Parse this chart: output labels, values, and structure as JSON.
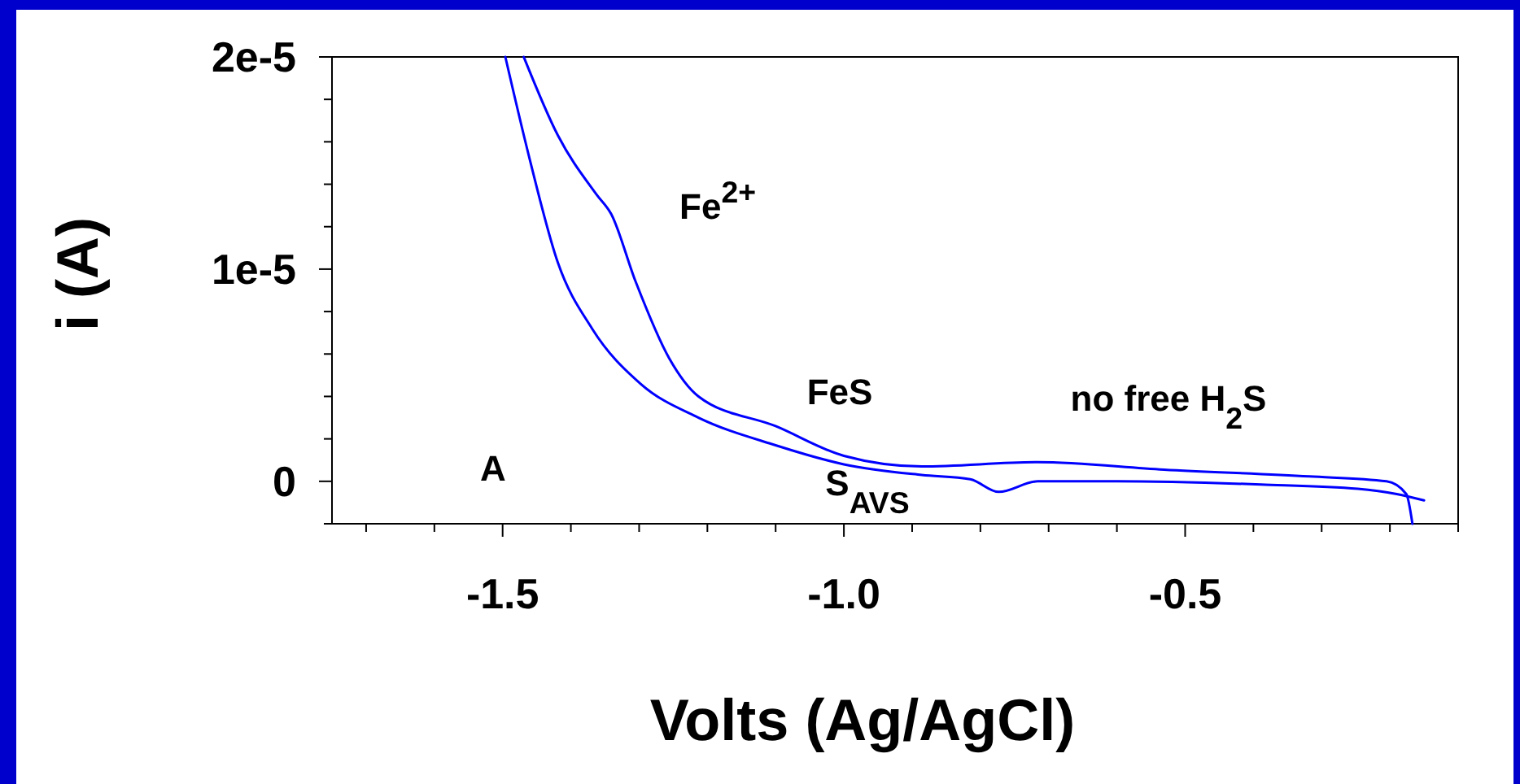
{
  "chart_data": {
    "type": "line",
    "xlabel": "Volts (Ag/AgCl)",
    "ylabel": "i (A)",
    "xlim": [
      -1.75,
      -0.1
    ],
    "ylim": [
      -2e-06,
      2e-05
    ],
    "xticks": [
      {
        "value": -1.7,
        "label": null
      },
      {
        "value": -1.6,
        "label": null
      },
      {
        "value": -1.5,
        "label": "-1.5"
      },
      {
        "value": -1.4,
        "label": null
      },
      {
        "value": -1.3,
        "label": null
      },
      {
        "value": -1.2,
        "label": null
      },
      {
        "value": -1.1,
        "label": null
      },
      {
        "value": -1.0,
        "label": "-1.0"
      },
      {
        "value": -0.9,
        "label": null
      },
      {
        "value": -0.8,
        "label": null
      },
      {
        "value": -0.7,
        "label": null
      },
      {
        "value": -0.6,
        "label": null
      },
      {
        "value": -0.5,
        "label": "-0.5"
      },
      {
        "value": -0.4,
        "label": null
      },
      {
        "value": -0.3,
        "label": null
      },
      {
        "value": -0.2,
        "label": null
      },
      {
        "value": -0.1,
        "label": null
      }
    ],
    "yticks": [
      {
        "value": -2e-06,
        "label": null
      },
      {
        "value": 0,
        "label": "0"
      },
      {
        "value": 2e-06,
        "label": null
      },
      {
        "value": 4e-06,
        "label": null
      },
      {
        "value": 6e-06,
        "label": null
      },
      {
        "value": 8e-06,
        "label": null
      },
      {
        "value": 1e-05,
        "label": "1e-5"
      },
      {
        "value": 1.2e-05,
        "label": null
      },
      {
        "value": 1.4e-05,
        "label": null
      },
      {
        "value": 1.6e-05,
        "label": null
      },
      {
        "value": 1.8e-05,
        "label": null
      },
      {
        "value": 2e-05,
        "label": "2e-5"
      }
    ],
    "grid": false,
    "marker": "none",
    "line_style": "solid",
    "series": [
      {
        "color": "#0000ff",
        "x": [
          -1.496,
          -1.462,
          -1.419,
          -1.369,
          -1.298,
          -1.213,
          -1.1,
          -1.0,
          -0.886,
          -0.815,
          -0.773,
          -0.716,
          -0.6,
          -0.389,
          -0.247,
          -0.19,
          -0.15
        ],
        "values": [
          2e-05,
          1.54e-05,
          1.03e-05,
          7.2e-06,
          4.6e-06,
          3e-06,
          1.7e-06,
          8e-07,
          3e-07,
          1e-07,
          -5e-07,
          0,
          0,
          -1.5e-07,
          -3.5e-07,
          -6e-07,
          -9e-07
        ]
      },
      {
        "color": "#0000ff",
        "x": [
          -1.469,
          -1.419,
          -1.362,
          -1.341,
          -1.305,
          -1.256,
          -1.213,
          -1.1,
          -1.0,
          -0.886,
          -0.716,
          -0.531,
          -0.318,
          -0.205,
          -0.176,
          -0.167
        ],
        "values": [
          2e-05,
          1.63e-05,
          1.35e-05,
          1.26e-05,
          9.4e-06,
          5.8e-06,
          4e-06,
          2.6e-06,
          1.2e-06,
          7e-07,
          9e-07,
          5.5e-07,
          2.3e-07,
          0,
          -6e-07,
          -2e-06
        ]
      }
    ],
    "annotations": [
      "A",
      "Fe$^{2+}$",
      "FeS",
      "S$_{AVS}$",
      "no free H$_{2}$S"
    ]
  }
}
